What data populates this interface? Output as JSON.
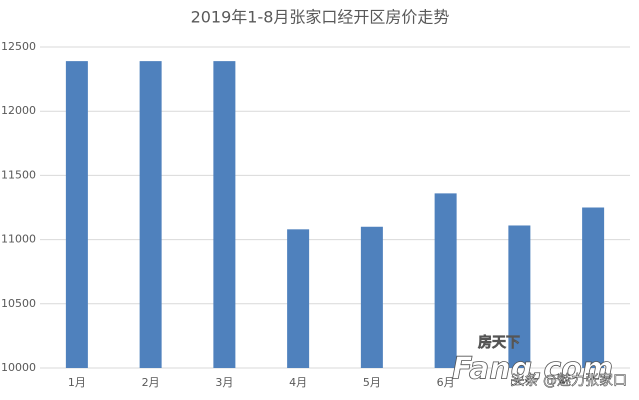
{
  "chart_data": {
    "type": "bar",
    "title": "2019年1-8月张家口经开区房价走势",
    "categories": [
      "1月",
      "2月",
      "3月",
      "4月",
      "5月",
      "6月",
      null,
      null
    ],
    "values": [
      12390,
      12390,
      12390,
      11080,
      11100,
      11360,
      11110,
      11250
    ],
    "color": "#4f81bd",
    "ylim": [
      10000,
      12500
    ],
    "yticks": [
      10000,
      10500,
      11000,
      11500,
      12000,
      12500
    ],
    "grid": true
  },
  "watermark": {
    "logo": "房天下",
    "site": "Fang.com",
    "account": "头条 @魅力张家口"
  }
}
